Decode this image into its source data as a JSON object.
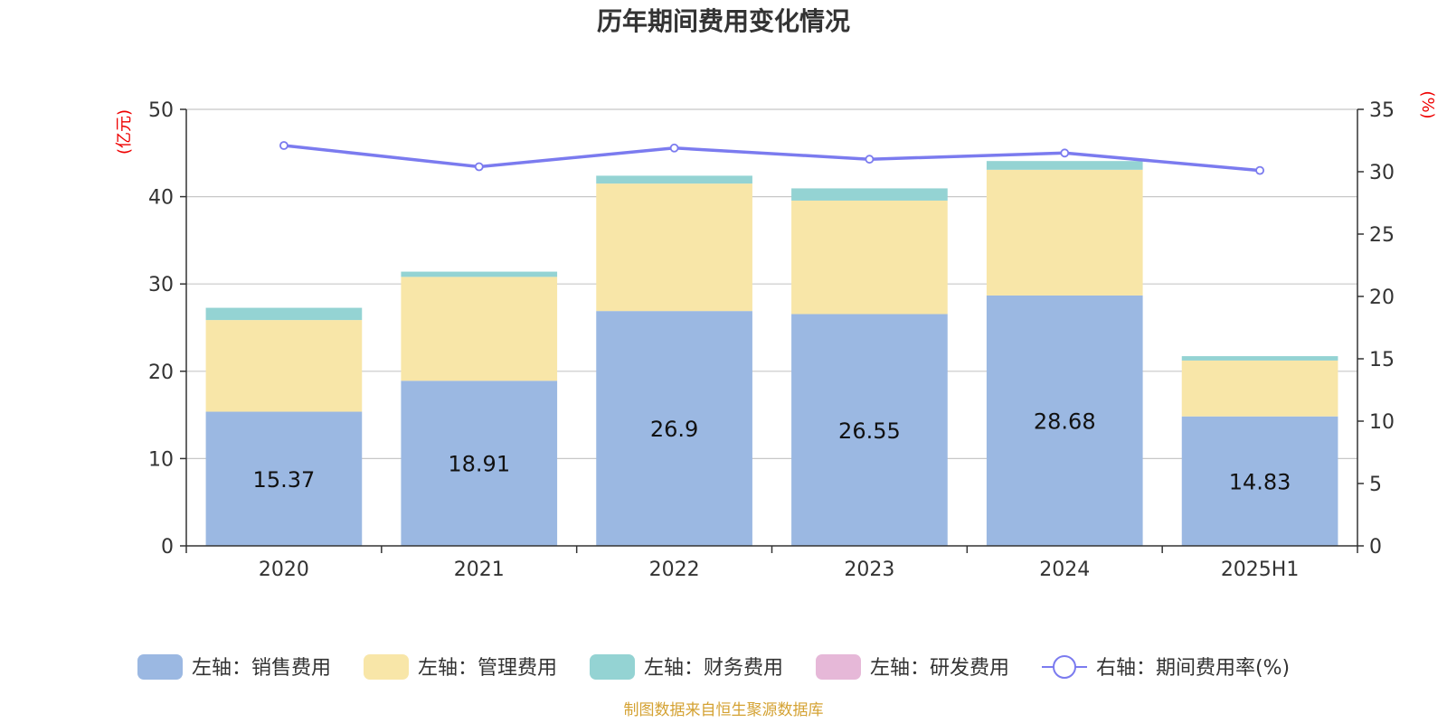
{
  "chart_data": {
    "type": "bar",
    "title": "历年期间费用变化情况",
    "y_left_unit": "(亿元)",
    "y_right_unit": "(%)",
    "categories": [
      "2020",
      "2021",
      "2022",
      "2023",
      "2024",
      "2025H1"
    ],
    "ylim_left": [
      0,
      50
    ],
    "yticks_left": [
      "0",
      "10",
      "20",
      "30",
      "40",
      "50"
    ],
    "ylim_right": [
      0,
      35
    ],
    "yticks_right": [
      "0",
      "5",
      "10",
      "15",
      "20",
      "25",
      "30",
      "35"
    ],
    "grid": true,
    "legend_position": "bottom",
    "series": [
      {
        "name": "左轴：销售费用",
        "axis": "left",
        "kind": "bar",
        "color": "#9bb8e2",
        "values": [
          15.37,
          18.91,
          26.9,
          26.55,
          28.68,
          14.83
        ],
        "labels": [
          "15.37",
          "18.91",
          "26.9",
          "26.55",
          "28.68",
          "14.83"
        ]
      },
      {
        "name": "左轴：管理费用",
        "axis": "left",
        "kind": "bar",
        "color": "#f8e6a8",
        "values": [
          10.5,
          11.9,
          14.6,
          13.0,
          14.4,
          6.4
        ]
      },
      {
        "name": "左轴：财务费用",
        "axis": "left",
        "kind": "bar",
        "color": "#94d3d3",
        "values": [
          1.4,
          0.6,
          0.9,
          1.4,
          1.0,
          0.5
        ]
      },
      {
        "name": "左轴：研发费用",
        "axis": "left",
        "kind": "bar",
        "color": "#e6b8d8",
        "values": [
          0,
          0,
          0,
          0,
          0,
          0
        ]
      },
      {
        "name": "右轴：期间费用率(%)",
        "axis": "right",
        "kind": "line",
        "color": "#7b7bef",
        "values": [
          32.1,
          30.4,
          31.9,
          31.0,
          31.5,
          30.1
        ]
      }
    ]
  },
  "source_note": "制图数据来自恒生聚源数据库"
}
